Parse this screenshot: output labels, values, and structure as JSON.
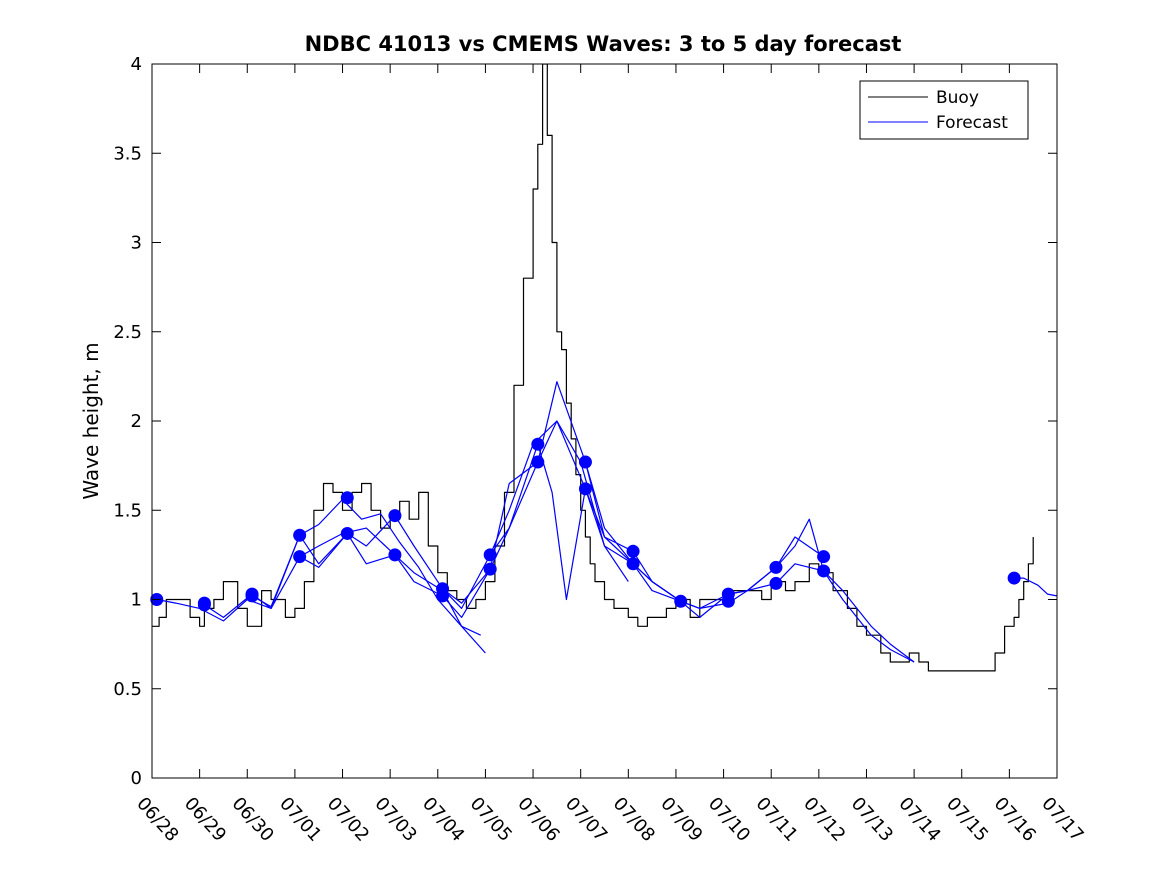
{
  "chart_data": {
    "type": "line",
    "title": "NDBC 41013 vs CMEMS Waves: 3 to 5 day forecast",
    "xlabel": "",
    "ylabel": "Wave height, m",
    "xlim": [
      0,
      19
    ],
    "ylim": [
      0,
      4
    ],
    "yticks": [
      0,
      0.5,
      1,
      1.5,
      2,
      2.5,
      3,
      3.5,
      4
    ],
    "xticks": [
      0,
      1,
      2,
      3,
      4,
      5,
      6,
      7,
      8,
      9,
      10,
      11,
      12,
      13,
      14,
      15,
      16,
      17,
      18,
      19
    ],
    "xtick_labels": [
      "06/28",
      "06/29",
      "06/30",
      "07/01",
      "07/02",
      "07/03",
      "07/04",
      "07/05",
      "07/06",
      "07/07",
      "07/08",
      "07/09",
      "07/10",
      "07/11",
      "07/12",
      "07/13",
      "07/14",
      "07/15",
      "07/16",
      "07/17"
    ],
    "legend": {
      "position": "top-right",
      "entries": [
        "Buoy",
        "Forecast"
      ]
    },
    "grid": false,
    "colors": {
      "buoy": "#000000",
      "forecast": "#0000ff"
    },
    "series": [
      {
        "name": "Buoy",
        "x": [
          0,
          0.15,
          0.3,
          0.5,
          0.8,
          1.0,
          1.1,
          1.3,
          1.5,
          1.8,
          2.0,
          2.3,
          2.5,
          2.8,
          3.0,
          3.2,
          3.4,
          3.6,
          3.8,
          4.0,
          4.2,
          4.4,
          4.6,
          4.8,
          5.0,
          5.2,
          5.4,
          5.6,
          5.8,
          6.0,
          6.2,
          6.4,
          6.6,
          6.8,
          7.0,
          7.2,
          7.4,
          7.6,
          7.8,
          8.0,
          8.1,
          8.2,
          8.3,
          8.4,
          8.5,
          8.6,
          8.7,
          8.8,
          8.9,
          9.0,
          9.1,
          9.2,
          9.3,
          9.5,
          9.7,
          10.0,
          10.2,
          10.4,
          10.6,
          10.8,
          11.0,
          11.3,
          11.5,
          11.8,
          12.0,
          12.3,
          12.5,
          12.8,
          13.0,
          13.3,
          13.5,
          13.8,
          14.0,
          14.3,
          14.6,
          14.8,
          15.0,
          15.3,
          15.5,
          15.7,
          15.9,
          16.1,
          16.3,
          16.5,
          16.7,
          17.0,
          17.3,
          17.5,
          17.7,
          17.9,
          18.1,
          18.2,
          18.3,
          18.4,
          18.5
        ],
        "y": [
          0.85,
          0.9,
          1.0,
          1.0,
          0.9,
          0.85,
          0.95,
          1.0,
          1.1,
          0.95,
          0.85,
          1.05,
          1.0,
          0.9,
          0.95,
          1.1,
          1.5,
          1.65,
          1.6,
          1.5,
          1.6,
          1.65,
          1.5,
          1.4,
          1.45,
          1.55,
          1.45,
          1.6,
          1.3,
          1.15,
          1.05,
          1.0,
          0.95,
          1.0,
          1.1,
          1.3,
          1.6,
          2.2,
          2.8,
          3.3,
          3.55,
          4.0,
          3.6,
          3.0,
          2.5,
          2.4,
          2.1,
          1.9,
          1.7,
          1.5,
          1.35,
          1.2,
          1.1,
          1.0,
          0.95,
          0.9,
          0.85,
          0.9,
          0.9,
          0.95,
          1.0,
          0.9,
          1.0,
          1.0,
          1.05,
          1.05,
          1.05,
          1.0,
          1.1,
          1.05,
          1.1,
          1.2,
          1.15,
          1.05,
          0.95,
          0.85,
          0.8,
          0.7,
          0.65,
          0.65,
          0.7,
          0.65,
          0.6,
          0.6,
          0.6,
          0.6,
          0.6,
          0.6,
          0.7,
          0.85,
          0.9,
          1.0,
          1.1,
          1.2,
          1.35
        ]
      },
      {
        "name": "Forecast",
        "x": [
          0.1,
          0.5,
          1.0,
          1.5,
          2.0,
          2.5,
          3.1,
          3.5,
          4.0,
          4.4,
          4.8,
          5.2,
          5.6,
          6.0,
          6.5,
          7.0
        ],
        "y": [
          1.0,
          0.98,
          0.95,
          0.88,
          1.0,
          0.95,
          1.36,
          1.42,
          1.56,
          1.45,
          1.48,
          1.32,
          1.18,
          1.0,
          0.85,
          0.7
        ]
      },
      {
        "x": [
          1.1,
          1.5,
          2.1,
          2.5,
          3.1,
          3.5,
          4.0,
          4.5,
          5.1,
          5.5,
          6.1,
          6.5,
          6.9
        ],
        "y": [
          0.97,
          0.9,
          1.03,
          0.95,
          1.24,
          1.3,
          1.37,
          1.4,
          1.25,
          1.15,
          1.05,
          0.85,
          0.8
        ]
      },
      {
        "x": [
          2.1,
          2.5,
          3.1,
          3.5,
          4.1,
          4.5,
          5.1,
          5.5,
          6.1,
          6.5,
          7.1,
          7.5,
          8.0,
          8.5,
          9.0,
          9.5,
          10.0
        ],
        "y": [
          1.02,
          0.96,
          1.36,
          1.2,
          1.37,
          1.3,
          1.47,
          1.3,
          1.06,
          0.95,
          1.25,
          1.5,
          1.87,
          2.0,
          1.77,
          1.3,
          1.1
        ]
      },
      {
        "x": [
          3.1,
          3.5,
          4.1,
          4.5,
          5.1,
          5.5,
          6.1,
          6.5,
          7.1,
          7.5,
          8.1,
          8.5,
          9.1,
          9.5,
          10.1,
          10.5,
          11.1
        ],
        "y": [
          1.24,
          1.18,
          1.37,
          1.2,
          1.25,
          1.1,
          1.02,
          0.9,
          1.17,
          1.65,
          1.77,
          2.22,
          1.77,
          1.4,
          1.2,
          1.1,
          0.99
        ]
      },
      {
        "x": [
          6.1,
          6.5,
          7.1,
          7.5,
          8.1,
          8.5,
          9.1,
          9.5,
          10.1,
          10.5,
          11.1,
          11.5,
          12.1,
          12.5,
          13.1,
          13.5,
          14.1
        ],
        "y": [
          1.06,
          0.98,
          1.17,
          1.4,
          1.77,
          2.0,
          1.62,
          1.3,
          1.2,
          1.05,
          0.99,
          0.9,
          1.03,
          1.05,
          1.18,
          1.35,
          1.24
        ]
      },
      {
        "x": [
          7.1,
          7.5,
          8.1,
          8.4,
          8.7,
          9.1,
          9.5,
          10.1,
          10.5,
          11.1,
          11.5,
          12.1,
          12.5,
          13.1,
          13.5,
          13.8,
          14.1,
          14.5,
          15.1,
          15.5,
          16.0
        ],
        "y": [
          1.25,
          1.4,
          1.87,
          1.6,
          1.0,
          1.62,
          1.35,
          1.27,
          1.1,
          0.99,
          0.95,
          0.98,
          1.05,
          1.18,
          1.3,
          1.45,
          1.16,
          1.05,
          0.85,
          0.75,
          0.65
        ]
      },
      {
        "x": [
          9.1,
          9.5,
          10.1,
          10.5,
          11.1,
          11.5,
          12.1,
          12.5,
          13.1,
          13.5,
          14.1,
          14.5,
          15.1,
          15.5,
          16.0
        ],
        "y": [
          1.77,
          1.35,
          1.2,
          1.1,
          0.99,
          0.95,
          1.03,
          1.05,
          1.09,
          1.2,
          1.16,
          1.0,
          0.8,
          0.72,
          0.65
        ]
      },
      {
        "x": [
          18.1,
          18.3,
          18.6,
          18.8,
          19.0
        ],
        "y": [
          1.12,
          1.12,
          1.08,
          1.03,
          1.02
        ]
      }
    ],
    "forecast_markers": [
      {
        "x": 0.1,
        "y": 1.0
      },
      {
        "x": 1.1,
        "y": 0.97
      },
      {
        "x": 1.1,
        "y": 0.98
      },
      {
        "x": 2.1,
        "y": 1.02
      },
      {
        "x": 2.1,
        "y": 1.03
      },
      {
        "x": 3.1,
        "y": 1.36
      },
      {
        "x": 3.1,
        "y": 1.24
      },
      {
        "x": 4.1,
        "y": 1.57
      },
      {
        "x": 4.1,
        "y": 1.37
      },
      {
        "x": 5.1,
        "y": 1.47
      },
      {
        "x": 5.1,
        "y": 1.25
      },
      {
        "x": 6.1,
        "y": 1.06
      },
      {
        "x": 6.1,
        "y": 1.02
      },
      {
        "x": 7.1,
        "y": 1.25
      },
      {
        "x": 7.1,
        "y": 1.17
      },
      {
        "x": 8.1,
        "y": 1.87
      },
      {
        "x": 8.1,
        "y": 1.77
      },
      {
        "x": 9.1,
        "y": 1.77
      },
      {
        "x": 9.1,
        "y": 1.62
      },
      {
        "x": 10.1,
        "y": 1.27
      },
      {
        "x": 10.1,
        "y": 1.2
      },
      {
        "x": 11.1,
        "y": 0.99
      },
      {
        "x": 12.1,
        "y": 1.03
      },
      {
        "x": 12.1,
        "y": 0.99
      },
      {
        "x": 13.1,
        "y": 1.18
      },
      {
        "x": 13.1,
        "y": 1.09
      },
      {
        "x": 14.1,
        "y": 1.24
      },
      {
        "x": 14.1,
        "y": 1.16
      },
      {
        "x": 18.1,
        "y": 1.12
      }
    ]
  }
}
